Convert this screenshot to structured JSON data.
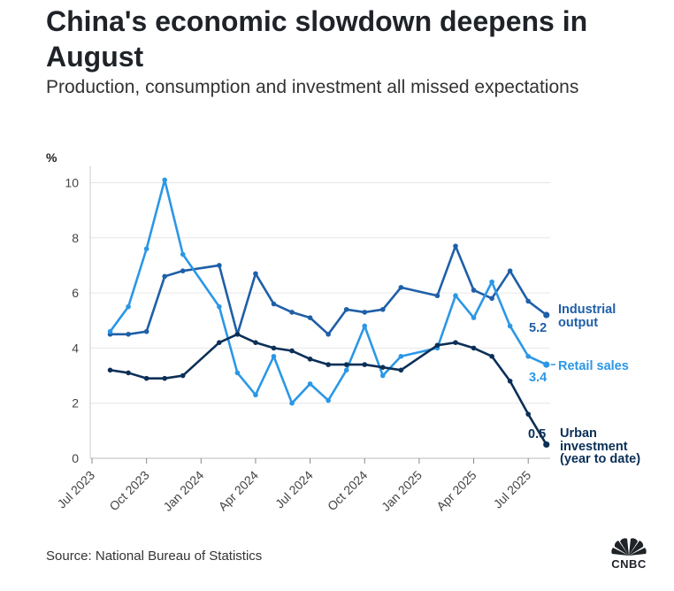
{
  "title": "China's economic slowdown deepens in August",
  "subtitle": "Production, consumption and investment all missed expectations",
  "source": "Source: National Bureau of Statistics",
  "logo_text": "CNBC",
  "colors": {
    "industrial": "#1f5fa8",
    "retail": "#2b97e6",
    "urban": "#0b2f57",
    "grid": "#e6e6e6",
    "axis": "#888888",
    "text": "#444444"
  },
  "chart_data": {
    "type": "line",
    "ylabel": "%",
    "ylim": [
      0,
      10.6
    ],
    "yticks": [
      0,
      2,
      4,
      6,
      8,
      10
    ],
    "xlim": [
      "2023-07",
      "2025-09"
    ],
    "xticks": [
      {
        "label": "Jul 2023",
        "month": 0
      },
      {
        "label": "Oct 2023",
        "month": 3
      },
      {
        "label": "Jan 2024",
        "month": 6
      },
      {
        "label": "Apr 2024",
        "month": 9
      },
      {
        "label": "Jul 2024",
        "month": 12
      },
      {
        "label": "Oct 2024",
        "month": 15
      },
      {
        "label": "Jan 2025",
        "month": 18
      },
      {
        "label": "Apr 2025",
        "month": 21
      },
      {
        "label": "Jul 2025",
        "month": 24
      }
    ],
    "grid": true,
    "series": [
      {
        "key": "industrial",
        "label_lines": [
          "Industrial",
          "output"
        ],
        "end_value_label": "5.2",
        "points": [
          [
            "2023-08",
            4.5
          ],
          [
            "2023-09",
            4.5
          ],
          [
            "2023-10",
            4.6
          ],
          [
            "2023-11",
            6.6
          ],
          [
            "2023-12",
            6.8
          ],
          [
            "2024-02",
            7.0
          ],
          [
            "2024-03",
            4.5
          ],
          [
            "2024-04",
            6.7
          ],
          [
            "2024-05",
            5.6
          ],
          [
            "2024-06",
            5.3
          ],
          [
            "2024-07",
            5.1
          ],
          [
            "2024-08",
            4.5
          ],
          [
            "2024-09",
            5.4
          ],
          [
            "2024-10",
            5.3
          ],
          [
            "2024-11",
            5.4
          ],
          [
            "2024-12",
            6.2
          ],
          [
            "2025-02",
            5.9
          ],
          [
            "2025-03",
            7.7
          ],
          [
            "2025-04",
            6.1
          ],
          [
            "2025-05",
            5.8
          ],
          [
            "2025-06",
            6.8
          ],
          [
            "2025-07",
            5.7
          ],
          [
            "2025-08",
            5.2
          ]
        ]
      },
      {
        "key": "retail",
        "label_lines": [
          "Retail sales"
        ],
        "end_value_label": "3.4",
        "points": [
          [
            "2023-08",
            4.6
          ],
          [
            "2023-09",
            5.5
          ],
          [
            "2023-10",
            7.6
          ],
          [
            "2023-11",
            10.1
          ],
          [
            "2023-12",
            7.4
          ],
          [
            "2024-02",
            5.5
          ],
          [
            "2024-03",
            3.1
          ],
          [
            "2024-04",
            2.3
          ],
          [
            "2024-05",
            3.7
          ],
          [
            "2024-06",
            2.0
          ],
          [
            "2024-07",
            2.7
          ],
          [
            "2024-08",
            2.1
          ],
          [
            "2024-09",
            3.2
          ],
          [
            "2024-10",
            4.8
          ],
          [
            "2024-11",
            3.0
          ],
          [
            "2024-12",
            3.7
          ],
          [
            "2025-02",
            4.0
          ],
          [
            "2025-03",
            5.9
          ],
          [
            "2025-04",
            5.1
          ],
          [
            "2025-05",
            6.4
          ],
          [
            "2025-06",
            4.8
          ],
          [
            "2025-07",
            3.7
          ],
          [
            "2025-08",
            3.4
          ]
        ]
      },
      {
        "key": "urban",
        "label_lines": [
          "Urban",
          "investment",
          "(year to date)"
        ],
        "end_value_label": "0.5",
        "points": [
          [
            "2023-08",
            3.2
          ],
          [
            "2023-09",
            3.1
          ],
          [
            "2023-10",
            2.9
          ],
          [
            "2023-11",
            2.9
          ],
          [
            "2023-12",
            3.0
          ],
          [
            "2024-02",
            4.2
          ],
          [
            "2024-03",
            4.5
          ],
          [
            "2024-04",
            4.2
          ],
          [
            "2024-05",
            4.0
          ],
          [
            "2024-06",
            3.9
          ],
          [
            "2024-07",
            3.6
          ],
          [
            "2024-08",
            3.4
          ],
          [
            "2024-09",
            3.4
          ],
          [
            "2024-10",
            3.4
          ],
          [
            "2024-11",
            3.3
          ],
          [
            "2024-12",
            3.2
          ],
          [
            "2025-02",
            4.1
          ],
          [
            "2025-03",
            4.2
          ],
          [
            "2025-04",
            4.0
          ],
          [
            "2025-05",
            3.7
          ],
          [
            "2025-06",
            2.8
          ],
          [
            "2025-07",
            1.6
          ],
          [
            "2025-08",
            0.5
          ]
        ]
      }
    ]
  }
}
